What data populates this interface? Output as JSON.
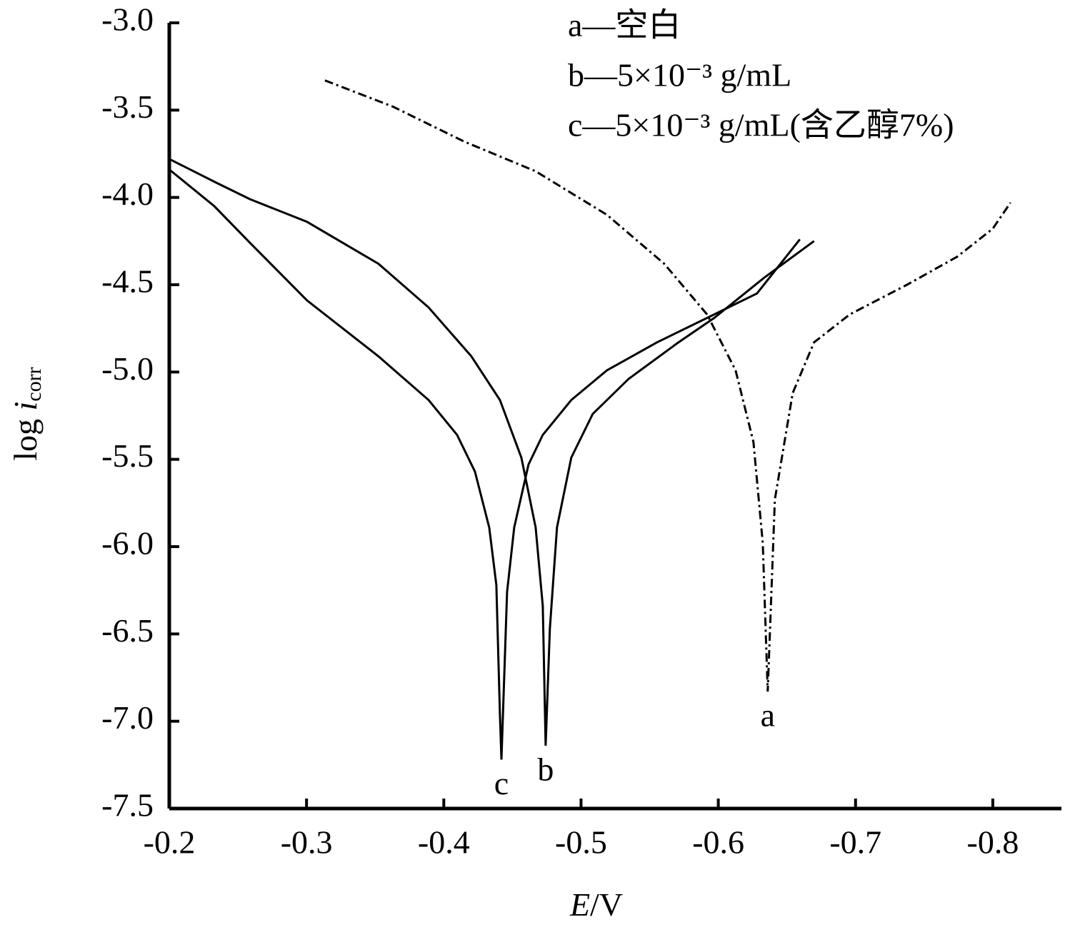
{
  "chart_data": {
    "type": "line",
    "x_label": [
      "E",
      "/V"
    ],
    "y_label": [
      "log ",
      "i",
      "corr"
    ],
    "xlim": [
      -0.2,
      -0.85
    ],
    "xticks": [
      -0.2,
      -0.3,
      -0.4,
      -0.5,
      -0.6,
      -0.7,
      -0.8
    ],
    "ylim": [
      -7.5,
      -3.0
    ],
    "yticks": [
      {
        "value": -3.0,
        "label": "-3.0"
      },
      {
        "value": -3.5,
        "label": "-3.5"
      },
      {
        "value": -4.0,
        "label": "-4.0"
      },
      {
        "value": -4.5,
        "label": "-4.5"
      },
      {
        "value": -5.0,
        "label": "-5.0"
      },
      {
        "value": -5.5,
        "label": "-5.5"
      },
      {
        "value": -6.0,
        "label": "-6.0"
      },
      {
        "value": -6.5,
        "label": "-6.5"
      },
      {
        "value": -7.0,
        "label": "-7.0"
      },
      {
        "value": -7.5,
        "label": "-7.5"
      }
    ],
    "grid": false,
    "legend": "top-right",
    "series": [
      {
        "name": "a—空白",
        "label": "a",
        "color": "#000000",
        "dash": true,
        "x": [
          -0.3134,
          -0.3629,
          -0.4149,
          -0.4669,
          -0.5189,
          -0.5606,
          -0.5918,
          -0.6126,
          -0.6256,
          -0.6324,
          -0.636,
          -0.6412,
          -0.6542,
          -0.6698,
          -0.6958,
          -0.7375,
          -0.7739,
          -0.7999,
          -0.8129
        ],
        "values": [
          -3.33,
          -3.48,
          -3.68,
          -3.85,
          -4.1,
          -4.38,
          -4.67,
          -4.99,
          -5.4,
          -5.98,
          -6.83,
          -5.73,
          -5.12,
          -4.83,
          -4.67,
          -4.5,
          -4.34,
          -4.18,
          -4.03
        ]
      },
      {
        "name": "b—5×10⁻³ g/mL",
        "label": "b",
        "color": "#000000",
        "dash": false,
        "x": [
          -0.2,
          -0.2328,
          -0.2588,
          -0.3004,
          -0.3524,
          -0.3889,
          -0.4201,
          -0.4409,
          -0.4565,
          -0.4669,
          -0.4721,
          -0.4742,
          -0.4773,
          -0.4825,
          -0.4929,
          -0.5085,
          -0.5346,
          -0.571,
          -0.597,
          -0.6334,
          -0.6698
        ],
        "values": [
          -3.78,
          -3.91,
          -4.01,
          -4.14,
          -4.38,
          -4.63,
          -4.91,
          -5.16,
          -5.49,
          -5.89,
          -6.34,
          -7.14,
          -6.47,
          -5.89,
          -5.49,
          -5.24,
          -5.04,
          -4.83,
          -4.69,
          -4.46,
          -4.25
        ]
      },
      {
        "name": "c—5×10⁻³ g/mL(含乙醇7%)",
        "label": "c",
        "color": "#000000",
        "dash": false,
        "x": [
          -0.2,
          -0.2328,
          -0.2588,
          -0.3004,
          -0.3524,
          -0.3889,
          -0.4097,
          -0.4227,
          -0.4331,
          -0.4383,
          -0.4409,
          -0.442,
          -0.4461,
          -0.4513,
          -0.4617,
          -0.4721,
          -0.4929,
          -0.5189,
          -0.5554,
          -0.597,
          -0.6282,
          -0.6594
        ],
        "values": [
          -3.84,
          -4.05,
          -4.26,
          -4.59,
          -4.91,
          -5.16,
          -5.36,
          -5.57,
          -5.89,
          -6.22,
          -6.96,
          -7.22,
          -6.26,
          -5.89,
          -5.53,
          -5.36,
          -5.16,
          -4.99,
          -4.83,
          -4.67,
          -4.55,
          -4.24
        ]
      }
    ]
  }
}
